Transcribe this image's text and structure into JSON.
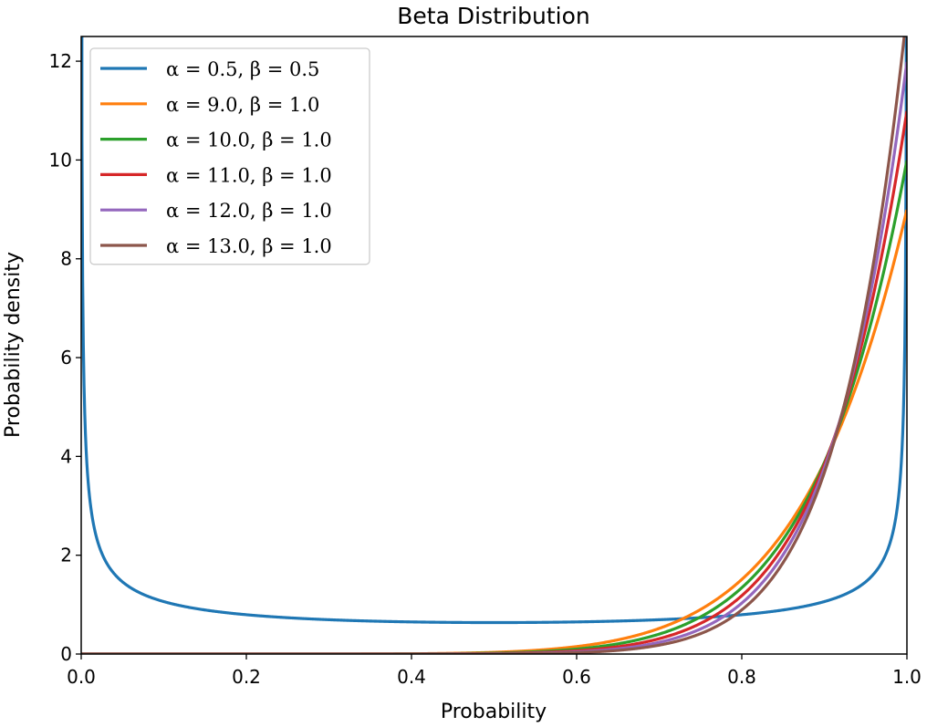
{
  "chart_data": {
    "type": "line",
    "title": "Beta Distribution",
    "xlabel": "Probability",
    "ylabel": "Probability density",
    "xlim": [
      0.0,
      1.0
    ],
    "ylim": [
      0,
      12.5
    ],
    "x_ticks": [
      0.0,
      0.2,
      0.4,
      0.6,
      0.8,
      1.0
    ],
    "x_tick_labels": [
      "0.0",
      "0.2",
      "0.4",
      "0.6",
      "0.8",
      "1.0"
    ],
    "y_ticks": [
      0,
      2,
      4,
      6,
      8,
      10,
      12
    ],
    "y_tick_labels": [
      "0",
      "2",
      "4",
      "6",
      "8",
      "10",
      "12"
    ],
    "grid": false,
    "legend_position": "top-left",
    "series": [
      {
        "name": "α = 0.5,  β = 0.5",
        "alpha": 0.5,
        "beta": 0.5,
        "color": "#1f77b4"
      },
      {
        "name": "α = 9.0,  β = 1.0",
        "alpha": 9.0,
        "beta": 1.0,
        "color": "#ff7f0e"
      },
      {
        "name": "α = 10.0,  β = 1.0",
        "alpha": 10.0,
        "beta": 1.0,
        "color": "#2ca02c"
      },
      {
        "name": "α = 11.0,  β = 1.0",
        "alpha": 11.0,
        "beta": 1.0,
        "color": "#d62728"
      },
      {
        "name": "α = 12.0,  β = 1.0",
        "alpha": 12.0,
        "beta": 1.0,
        "color": "#9467bd"
      },
      {
        "name": "α = 13.0,  β = 1.0",
        "alpha": 13.0,
        "beta": 1.0,
        "color": "#8c564b"
      }
    ]
  }
}
